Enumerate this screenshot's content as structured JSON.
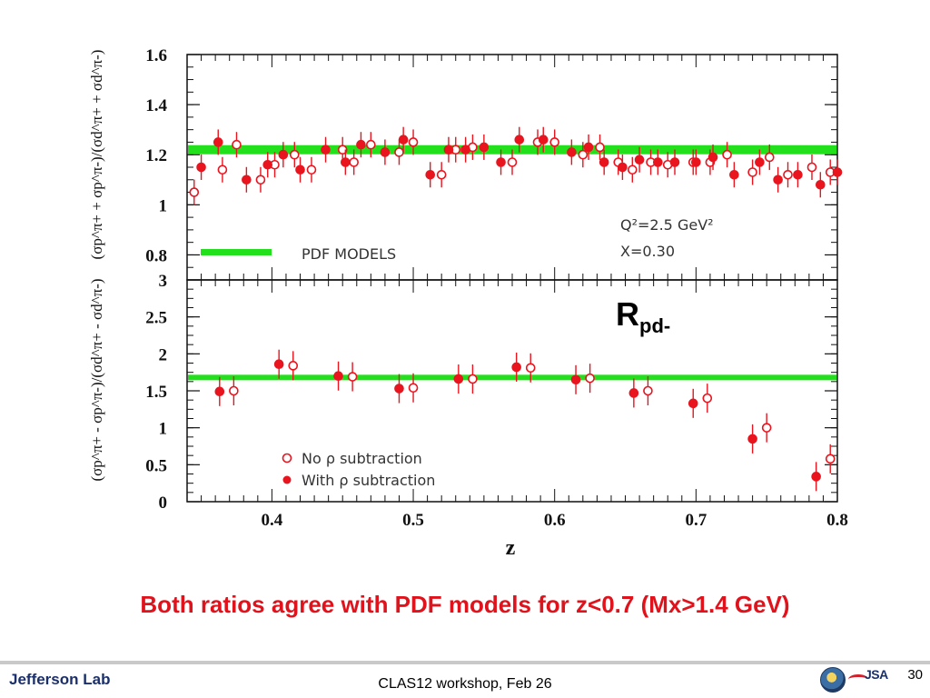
{
  "chart_data": [
    {
      "type": "scatter",
      "title": "",
      "xlabel": "z",
      "ylabel": "(σp^π+ + σp^π-)/(σd^π+ + σd^π-)",
      "xlim": [
        0.34,
        0.8
      ],
      "ylim": [
        0.7,
        1.6
      ],
      "yticks": [
        "0.8",
        "1",
        "1.2",
        "1.4",
        "1.6"
      ],
      "annotation_lines": [
        "Q²=2.5 GeV²",
        "X=0.30"
      ],
      "model_label": "PDF MODELS",
      "model_value": 1.22,
      "series": [
        {
          "name": "No ρ subtraction",
          "marker": "open-circle",
          "x": [
            0.345,
            0.365,
            0.375,
            0.392,
            0.402,
            0.416,
            0.428,
            0.45,
            0.458,
            0.47,
            0.49,
            0.5,
            0.52,
            0.53,
            0.542,
            0.57,
            0.588,
            0.6,
            0.62,
            0.632,
            0.645,
            0.655,
            0.668,
            0.68,
            0.698,
            0.71,
            0.722,
            0.74,
            0.752,
            0.765,
            0.782,
            0.795
          ],
          "y": [
            1.05,
            1.14,
            1.24,
            1.1,
            1.16,
            1.2,
            1.14,
            1.22,
            1.17,
            1.24,
            1.21,
            1.25,
            1.12,
            1.22,
            1.23,
            1.17,
            1.25,
            1.25,
            1.2,
            1.23,
            1.17,
            1.14,
            1.17,
            1.16,
            1.17,
            1.17,
            1.2,
            1.13,
            1.19,
            1.12,
            1.15,
            1.13
          ]
        },
        {
          "name": "With ρ subtraction",
          "marker": "filled-circle",
          "x": [
            0.35,
            0.362,
            0.382,
            0.397,
            0.408,
            0.42,
            0.438,
            0.452,
            0.463,
            0.48,
            0.493,
            0.512,
            0.525,
            0.537,
            0.55,
            0.562,
            0.575,
            0.592,
            0.612,
            0.624,
            0.635,
            0.648,
            0.66,
            0.673,
            0.685,
            0.7,
            0.712,
            0.727,
            0.745,
            0.758,
            0.772,
            0.788,
            0.8
          ],
          "y": [
            1.15,
            1.25,
            1.1,
            1.16,
            1.2,
            1.14,
            1.22,
            1.17,
            1.24,
            1.21,
            1.26,
            1.12,
            1.22,
            1.22,
            1.23,
            1.17,
            1.26,
            1.26,
            1.21,
            1.23,
            1.17,
            1.15,
            1.18,
            1.17,
            1.17,
            1.17,
            1.19,
            1.12,
            1.17,
            1.1,
            1.12,
            1.08,
            1.13
          ]
        }
      ]
    },
    {
      "type": "scatter",
      "title": "",
      "xlabel": "z",
      "ylabel": "(σp^π+ - σp^π-)/(σd^π+ - σd^π-)",
      "xlim": [
        0.34,
        0.8
      ],
      "ylim": [
        0,
        3
      ],
      "yticks": [
        "0",
        "0.5",
        "1",
        "1.5",
        "2",
        "2.5",
        "3"
      ],
      "xticks": [
        "0.4",
        "0.5",
        "0.6",
        "0.7",
        "0.8"
      ],
      "model_value": 1.68,
      "series": [
        {
          "name": "No ρ subtraction",
          "marker": "open-circle",
          "x": [
            0.373,
            0.415,
            0.457,
            0.5,
            0.542,
            0.583,
            0.625,
            0.666,
            0.708,
            0.75,
            0.795
          ],
          "y": [
            1.5,
            1.84,
            1.69,
            1.54,
            1.66,
            1.81,
            1.67,
            1.5,
            1.4,
            1.0,
            0.58
          ]
        },
        {
          "name": "With ρ subtraction",
          "marker": "filled-circle",
          "x": [
            0.363,
            0.405,
            0.447,
            0.49,
            0.532,
            0.573,
            0.615,
            0.656,
            0.698,
            0.74,
            0.785
          ],
          "y": [
            1.49,
            1.86,
            1.7,
            1.53,
            1.66,
            1.82,
            1.65,
            1.47,
            1.33,
            0.85,
            0.34
          ]
        }
      ]
    }
  ],
  "legend": {
    "open": "No ρ subtraction",
    "filled": "With ρ subtraction"
  },
  "labels": {
    "ylabel_top": "(σp^π+ + σp^π-)/(σd^π+ + σd^π-)",
    "ylabel_bottom": "(σp^π+ - σp^π-)/(σd^π+ - σd^π-)",
    "r_main": "R",
    "r_sub": "pd-",
    "caption": "Both ratios agree with PDF models for z<0.7 (Mx>1.4 GeV)",
    "footer": "CLAS12 workshop,  Feb 26",
    "page_number": "30",
    "logo_text": "Jefferson Lab",
    "jsa_text": "JSA"
  },
  "colors": {
    "data": "#e8141e",
    "model": "#22e01b",
    "caption": "#e0121b",
    "axis": "#111111"
  }
}
